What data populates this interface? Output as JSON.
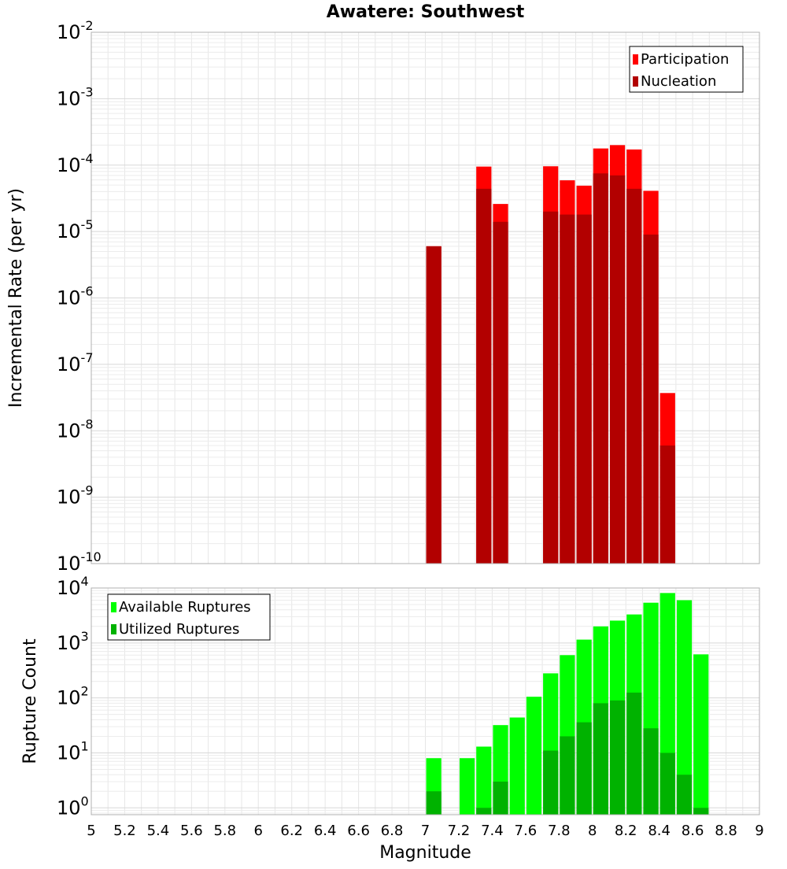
{
  "chart_data": [
    {
      "type": "bar",
      "title": "Awatere: Southwest",
      "xlabel": "",
      "ylabel": "Incremental Rate (per yr)",
      "yscale": "log",
      "ylim": [
        1e-10,
        0.01
      ],
      "xlim": [
        5,
        9
      ],
      "grid": true,
      "legend_position": "top-right",
      "bar_width": 0.1,
      "series": [
        {
          "name": "Participation",
          "color": "#ff0000",
          "x": [
            7.05,
            7.35,
            7.45,
            7.75,
            7.85,
            7.95,
            8.05,
            8.15,
            8.25,
            8.35,
            8.45
          ],
          "values": [
            6e-06,
            9.5e-05,
            2.6e-05,
            9.6e-05,
            5.9e-05,
            4.9e-05,
            0.000178,
            0.0002,
            0.000172,
            4.1e-05,
            3.7e-08
          ]
        },
        {
          "name": "Nucleation",
          "color": "#b20000",
          "x": [
            7.05,
            7.35,
            7.45,
            7.75,
            7.85,
            7.95,
            8.05,
            8.15,
            8.25,
            8.35,
            8.45
          ],
          "values": [
            6e-06,
            4.4e-05,
            1.4e-05,
            2e-05,
            1.8e-05,
            1.8e-05,
            7.5e-05,
            7e-05,
            4.4e-05,
            9e-06,
            6e-09
          ]
        }
      ],
      "ytick_labels": [
        {
          "base": "10",
          "exp": "-10"
        },
        {
          "base": "10",
          "exp": "-9"
        },
        {
          "base": "10",
          "exp": "-8"
        },
        {
          "base": "10",
          "exp": "-7"
        },
        {
          "base": "10",
          "exp": "-6"
        },
        {
          "base": "10",
          "exp": "-5"
        },
        {
          "base": "10",
          "exp": "-4"
        },
        {
          "base": "10",
          "exp": "-3"
        },
        {
          "base": "10",
          "exp": "-2"
        }
      ]
    },
    {
      "type": "bar",
      "title": "",
      "xlabel": "Magnitude",
      "ylabel": "Rupture Count",
      "yscale": "log",
      "ylim": [
        0.75,
        10000
      ],
      "xlim": [
        5,
        9
      ],
      "grid": true,
      "legend_position": "top-left",
      "bar_width": 0.1,
      "series": [
        {
          "name": "Available Ruptures",
          "color": "#00ff00",
          "x": [
            7.05,
            7.25,
            7.35,
            7.45,
            7.55,
            7.65,
            7.75,
            7.85,
            7.95,
            8.05,
            8.15,
            8.25,
            8.35,
            8.45,
            8.55,
            8.65
          ],
          "values": [
            8,
            8,
            13,
            32,
            44,
            105,
            280,
            600,
            1150,
            2000,
            2550,
            3300,
            5400,
            8100,
            6000,
            620
          ]
        },
        {
          "name": "Utilized Ruptures",
          "color": "#00b200",
          "x": [
            7.05,
            7.35,
            7.45,
            7.75,
            7.85,
            7.95,
            8.05,
            8.15,
            8.25,
            8.35,
            8.45,
            8.55,
            8.65
          ],
          "values": [
            2,
            1,
            3,
            11,
            20,
            36,
            80,
            90,
            125,
            28,
            10,
            4,
            1
          ]
        }
      ],
      "ytick_labels": [
        {
          "base": "10",
          "exp": "0"
        },
        {
          "base": "10",
          "exp": "1"
        },
        {
          "base": "10",
          "exp": "2"
        },
        {
          "base": "10",
          "exp": "3"
        },
        {
          "base": "10",
          "exp": "4"
        }
      ],
      "xtick_labels": [
        "5",
        "5.2",
        "5.4",
        "5.6",
        "5.8",
        "6",
        "6.2",
        "6.4",
        "6.6",
        "6.8",
        "7",
        "7.2",
        "7.4",
        "7.6",
        "7.8",
        "8",
        "8.2",
        "8.4",
        "8.6",
        "8.8",
        "9"
      ]
    }
  ]
}
